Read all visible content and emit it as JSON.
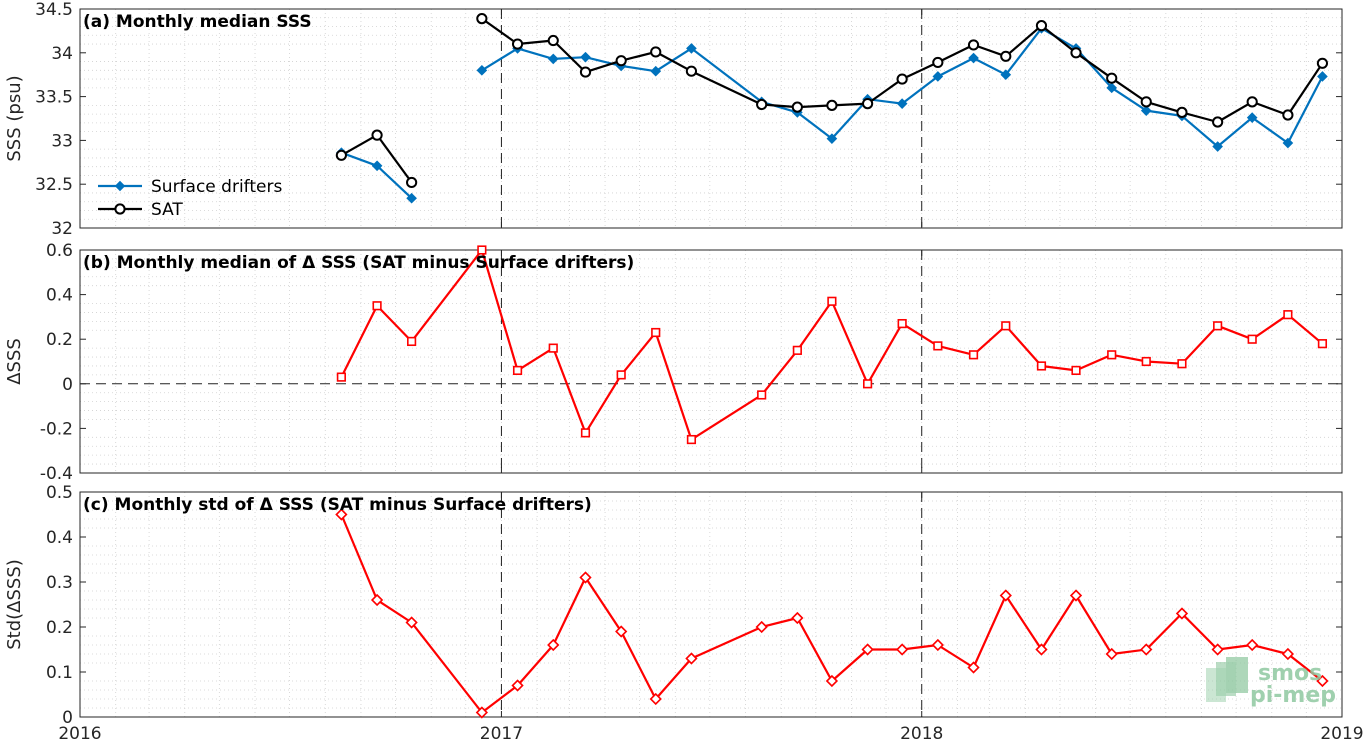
{
  "chart_data": [
    {
      "type": "line",
      "title": "(a) Monthly median SSS",
      "xlabel": "",
      "ylabel": "SSS (psu)",
      "xlim": [
        "2016-01-01",
        "2019-01-01"
      ],
      "ylim": [
        32,
        34.5
      ],
      "yticks": [
        "32",
        "32.5",
        "33",
        "33.5",
        "34",
        "34.5"
      ],
      "grid": true,
      "legend": "upper-left",
      "x": [
        "2016-08-15",
        "2016-09-15",
        "2016-10-15",
        "2016-11-15",
        "2016-12-15",
        "2017-01-15",
        "2017-02-15",
        "2017-03-15",
        "2017-04-15",
        "2017-05-15",
        "2017-06-15",
        "2017-08-15",
        "2017-09-15",
        "2017-10-15",
        "2017-11-15",
        "2017-12-15",
        "2018-01-15",
        "2018-02-15",
        "2018-03-15",
        "2018-04-15",
        "2018-05-15",
        "2018-06-15",
        "2018-07-15",
        "2018-08-15",
        "2018-09-15",
        "2018-10-15",
        "2018-11-15",
        "2018-12-15"
      ],
      "series": [
        {
          "name": "Surface drifters",
          "color": "#0072bd",
          "marker": "diamond",
          "values": [
            32.86,
            32.71,
            32.34,
            null,
            33.8,
            34.05,
            33.93,
            33.95,
            33.85,
            33.79,
            34.05,
            33.44,
            33.32,
            33.02,
            33.47,
            33.42,
            33.73,
            33.94,
            33.75,
            34.28,
            34.05,
            33.6,
            33.34,
            33.28,
            32.93,
            33.26,
            32.97,
            33.73
          ]
        },
        {
          "name": "SAT",
          "color": "#000000",
          "marker": "circle",
          "values": [
            32.83,
            33.06,
            32.52,
            null,
            34.39,
            34.1,
            34.14,
            33.78,
            33.91,
            34.01,
            33.79,
            33.41,
            33.38,
            33.4,
            33.42,
            33.7,
            33.89,
            34.09,
            33.96,
            34.31,
            34.0,
            33.71,
            33.44,
            33.32,
            33.21,
            33.44,
            33.29,
            33.88
          ]
        }
      ]
    },
    {
      "type": "line",
      "title": "(b) Monthly median of Δ SSS (SAT minus Surface drifters)",
      "xlabel": "",
      "ylabel": "ΔSSS",
      "xlim": [
        "2016-01-01",
        "2019-01-01"
      ],
      "ylim": [
        -0.4,
        0.6
      ],
      "yticks": [
        "-0.4",
        "-0.2",
        "0",
        "0.2",
        "0.4",
        "0.6"
      ],
      "grid": true,
      "zero_line": true,
      "x": [
        "2016-08-15",
        "2016-09-15",
        "2016-10-15",
        "2016-12-15",
        "2017-01-15",
        "2017-02-15",
        "2017-03-15",
        "2017-04-15",
        "2017-05-15",
        "2017-06-15",
        "2017-08-15",
        "2017-09-15",
        "2017-10-15",
        "2017-11-15",
        "2017-12-15",
        "2018-01-15",
        "2018-02-15",
        "2018-03-15",
        "2018-04-15",
        "2018-05-15",
        "2018-06-15",
        "2018-07-15",
        "2018-08-15",
        "2018-09-15",
        "2018-10-15",
        "2018-11-15",
        "2018-12-15"
      ],
      "series": [
        {
          "name": "",
          "color": "#ff0000",
          "marker": "square",
          "values": [
            0.03,
            0.35,
            0.19,
            0.6,
            0.06,
            0.16,
            -0.22,
            0.04,
            0.23,
            -0.25,
            -0.05,
            0.15,
            0.37,
            0.0,
            0.27,
            0.17,
            0.13,
            0.26,
            0.08,
            0.06,
            0.13,
            0.1,
            0.09,
            0.26,
            0.2,
            0.31,
            0.18
          ]
        }
      ]
    },
    {
      "type": "line",
      "title": "(c) Monthly std of Δ SSS (SAT minus Surface drifters)",
      "xlabel": "",
      "ylabel": "Std(ΔSSS)",
      "xlim": [
        "2016-01-01",
        "2019-01-01"
      ],
      "ylim": [
        0,
        0.5
      ],
      "yticks": [
        "0",
        "0.1",
        "0.2",
        "0.3",
        "0.4",
        "0.5"
      ],
      "xticks": [
        "2016",
        "2017",
        "2018",
        "2019"
      ],
      "grid": true,
      "x": [
        "2016-08-15",
        "2016-09-15",
        "2016-10-15",
        "2016-12-15",
        "2017-01-15",
        "2017-02-15",
        "2017-03-15",
        "2017-04-15",
        "2017-05-15",
        "2017-06-15",
        "2017-08-15",
        "2017-09-15",
        "2017-10-15",
        "2017-11-15",
        "2017-12-15",
        "2018-01-15",
        "2018-02-15",
        "2018-03-15",
        "2018-04-15",
        "2018-05-15",
        "2018-06-15",
        "2018-07-15",
        "2018-08-15",
        "2018-09-15",
        "2018-10-15",
        "2018-11-15",
        "2018-12-15"
      ],
      "series": [
        {
          "name": "",
          "color": "#ff0000",
          "marker": "diamond",
          "values": [
            0.45,
            0.26,
            0.21,
            0.01,
            0.07,
            0.16,
            0.31,
            0.19,
            0.04,
            0.13,
            0.2,
            0.22,
            0.08,
            0.15,
            0.15,
            0.16,
            0.11,
            0.27,
            0.15,
            0.27,
            0.14,
            0.15,
            0.23,
            0.15,
            0.16,
            0.14,
            0.08
          ]
        }
      ]
    }
  ],
  "watermark": {
    "line1": "smos",
    "line2": "pi-mep",
    "color": "#8fc8a0"
  }
}
